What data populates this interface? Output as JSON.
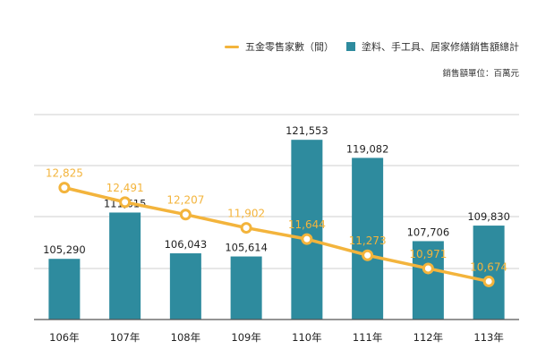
{
  "legend": {
    "line_label": "五金零售家數（間）",
    "bar_label": "塗料、手工具、居家修繕銷售額總計"
  },
  "unit_note": "銷售額單位：百萬元",
  "colors": {
    "bar": "#2e8b9e",
    "line": "#f3b43c",
    "grid": "#cfcfcf",
    "axis": "#555555",
    "label": "#222222"
  },
  "chart_data": {
    "type": "bar",
    "categories": [
      "106年",
      "107年",
      "108年",
      "109年",
      "110年",
      "111年",
      "112年",
      "113年"
    ],
    "series": [
      {
        "name": "塗料、手工具、居家修繕銷售額總計",
        "type": "bar",
        "values": [
          105290,
          111615,
          106043,
          105614,
          121553,
          119082,
          107706,
          109830
        ],
        "labels": [
          "105,290",
          "111,615",
          "106,043",
          "105,614",
          "121,553",
          "119,082",
          "107,706",
          "109,830"
        ]
      },
      {
        "name": "五金零售家數（間）",
        "type": "line",
        "values": [
          12825,
          12491,
          12207,
          11902,
          11644,
          11273,
          10971,
          10674
        ],
        "labels": [
          "12,825",
          "12,491",
          "12,207",
          "11,902",
          "11,644",
          "11,273",
          "10,971",
          "10,674"
        ]
      }
    ],
    "bar_ylim": [
      97000,
      125000
    ],
    "line_ylim": [
      9800,
      14500
    ],
    "grid": true,
    "legend_position": "top-right"
  }
}
